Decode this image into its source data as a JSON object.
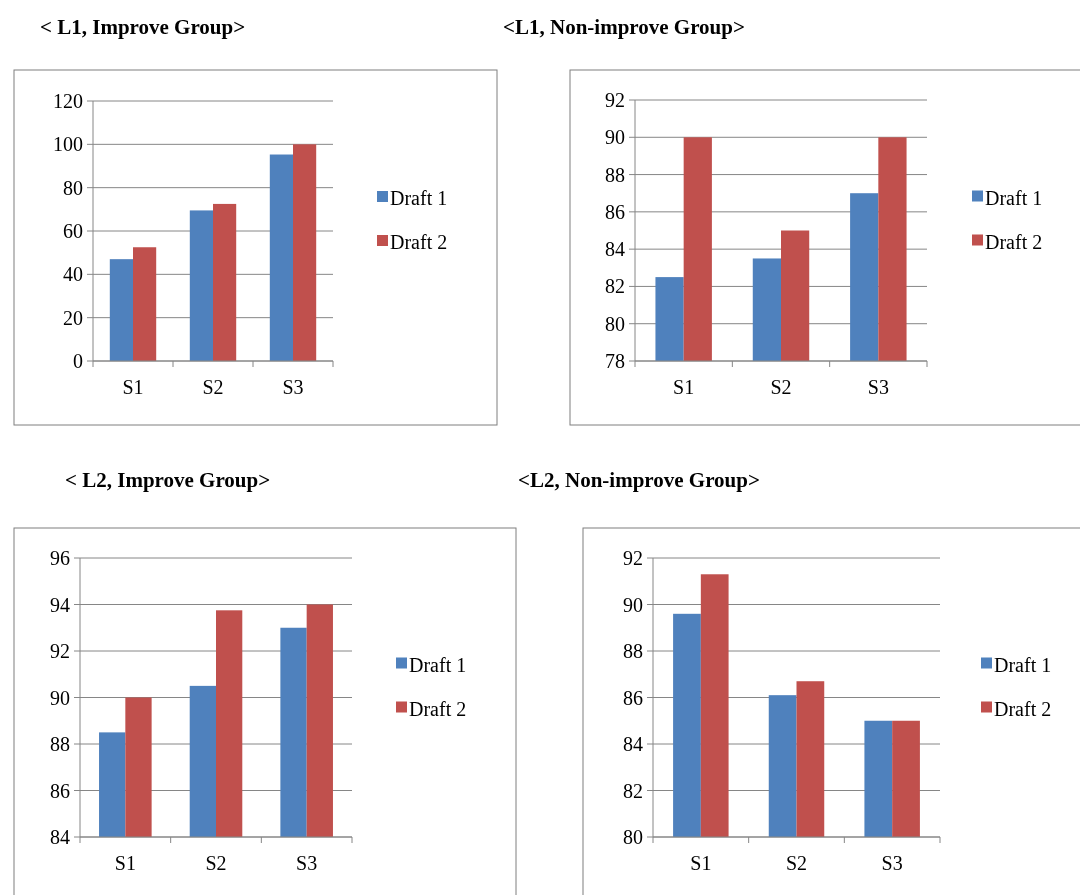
{
  "chart_data": [
    {
      "type": "bar",
      "title": "< L1, Improve Group>",
      "categories": [
        "S1",
        "S2",
        "S3"
      ],
      "series": [
        {
          "name": "Draft 1",
          "color": "#4f81bd",
          "values": [
            47,
            69.5,
            95.3
          ]
        },
        {
          "name": "Draft 2",
          "color": "#c0504d",
          "values": [
            52.5,
            72.5,
            100
          ]
        }
      ],
      "ylim": [
        0,
        120
      ],
      "yticks": [
        0,
        20,
        40,
        60,
        80,
        100,
        120
      ],
      "grid": "y",
      "legend": "right"
    },
    {
      "type": "bar",
      "title": "<L1, Non-improve Group>",
      "categories": [
        "S1",
        "S2",
        "S3"
      ],
      "series": [
        {
          "name": "Draft 1",
          "color": "#4f81bd",
          "values": [
            82.5,
            83.5,
            87
          ]
        },
        {
          "name": "Draft 2",
          "color": "#c0504d",
          "values": [
            90,
            85,
            90
          ]
        }
      ],
      "ylim": [
        78,
        92
      ],
      "yticks": [
        78,
        80,
        82,
        84,
        86,
        88,
        90,
        92
      ],
      "grid": "y",
      "legend": "right"
    },
    {
      "type": "bar",
      "title": "< L2, Improve Group>",
      "categories": [
        "S1",
        "S2",
        "S3"
      ],
      "series": [
        {
          "name": "Draft 1",
          "color": "#4f81bd",
          "values": [
            88.5,
            90.5,
            93
          ]
        },
        {
          "name": "Draft 2",
          "color": "#c0504d",
          "values": [
            90,
            93.75,
            94
          ]
        }
      ],
      "ylim": [
        84,
        96
      ],
      "yticks": [
        84,
        86,
        88,
        90,
        92,
        94,
        96
      ],
      "grid": "y",
      "legend": "right"
    },
    {
      "type": "bar",
      "title": "<L2, Non-improve Group>",
      "categories": [
        "S1",
        "S2",
        "S3"
      ],
      "series": [
        {
          "name": "Draft 1",
          "color": "#4f81bd",
          "values": [
            89.6,
            86.1,
            85
          ]
        },
        {
          "name": "Draft 2",
          "color": "#c0504d",
          "values": [
            91.3,
            86.7,
            85
          ]
        }
      ],
      "ylim": [
        80,
        92
      ],
      "yticks": [
        80,
        82,
        84,
        86,
        88,
        90,
        92
      ],
      "grid": "y",
      "legend": "right"
    }
  ]
}
